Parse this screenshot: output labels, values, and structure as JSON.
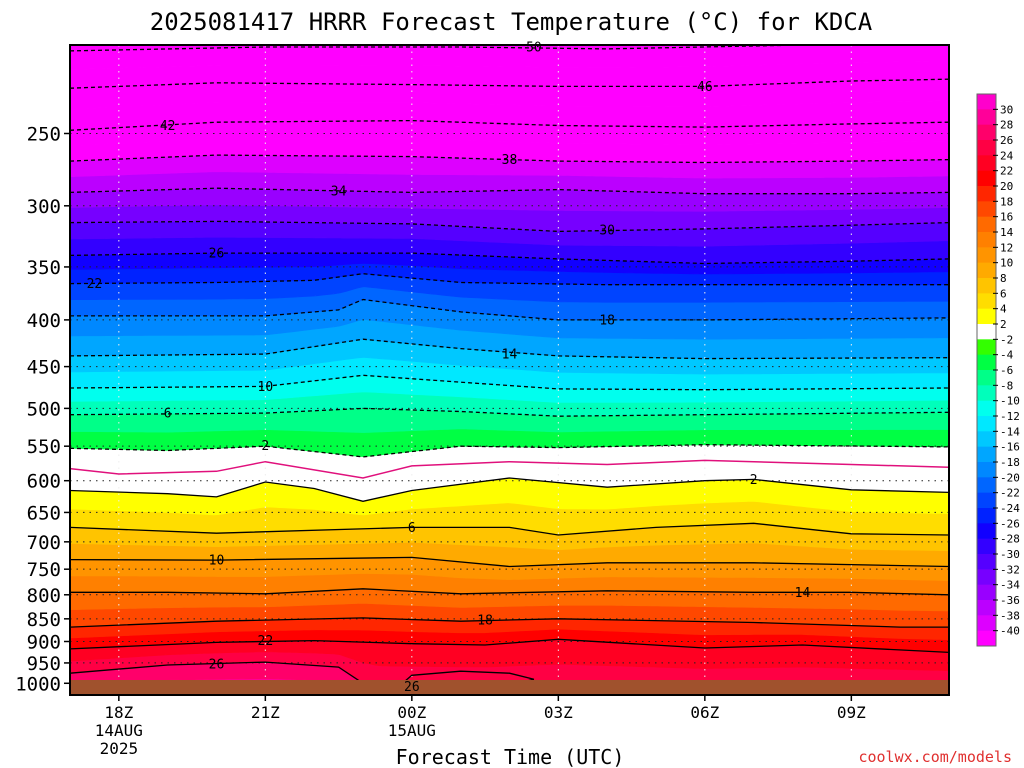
{
  "chart_data": {
    "type": "heatmap",
    "title": "2025081417 HRRR Forecast Temperature (°C) for KDCA",
    "xlabel": "Forecast Time (UTC)",
    "ylabel": "",
    "credit": "coolwx.com/models",
    "y_axis": {
      "scale": "log",
      "inverted": true,
      "range": [
        1030,
        200
      ],
      "ticks": [
        250,
        300,
        350,
        400,
        450,
        500,
        550,
        600,
        650,
        700,
        750,
        800,
        850,
        900,
        950,
        1000
      ],
      "tick_labels": [
        "250",
        "300",
        "350",
        "400",
        "450",
        "500",
        "550",
        "600",
        "650",
        "700",
        "750",
        "800",
        "850",
        "900",
        "950",
        "1000"
      ]
    },
    "x_axis": {
      "range": [
        "2025-08-14T17:00Z",
        "2025-08-15T11:00Z"
      ],
      "ticks": [
        "2025-08-14T18:00Z",
        "2025-08-14T21:00Z",
        "2025-08-15T00:00Z",
        "2025-08-15T03:00Z",
        "2025-08-15T06:00Z",
        "2025-08-15T09:00Z"
      ],
      "tick_labels": [
        [
          "18Z",
          "14AUG",
          "2025"
        ],
        [
          "21Z",
          "",
          ""
        ],
        [
          "00Z",
          "15AUG",
          ""
        ],
        [
          "03Z",
          "",
          ""
        ],
        [
          "06Z",
          "",
          ""
        ],
        [
          "09Z",
          "",
          ""
        ]
      ]
    },
    "grid": true,
    "ground_color": "#a0522d",
    "contours": [
      {
        "value": -50,
        "label": "50",
        "style": "dashed",
        "points": [
          [
            "2025-08-14T17:00Z",
            203
          ],
          [
            "2025-08-14T21:00Z",
            201
          ],
          [
            "2025-08-15T01:00Z",
            201
          ],
          [
            "2025-08-15T04:00Z",
            202
          ],
          [
            "2025-08-15T08:00Z",
            200
          ],
          [
            "2025-08-15T11:00Z",
            199
          ]
        ],
        "label_at": [
          "2025-08-15T02:30Z",
          201
        ]
      },
      {
        "value": -46,
        "label": "46",
        "style": "dashed",
        "points": [
          [
            "2025-08-14T17:00Z",
            223
          ],
          [
            "2025-08-14T20:00Z",
            220
          ],
          [
            "2025-08-15T00:00Z",
            221
          ],
          [
            "2025-08-15T03:00Z",
            222
          ],
          [
            "2025-08-15T06:00Z",
            222
          ],
          [
            "2025-08-15T09:00Z",
            219
          ],
          [
            "2025-08-15T11:00Z",
            218
          ]
        ],
        "label_at": [
          "2025-08-15T06:00Z",
          222
        ]
      },
      {
        "value": -42,
        "label": "42",
        "style": "dashed",
        "points": [
          [
            "2025-08-14T17:00Z",
            248
          ],
          [
            "2025-08-14T20:00Z",
            243
          ],
          [
            "2025-08-15T00:00Z",
            242
          ],
          [
            "2025-08-15T03:00Z",
            245
          ],
          [
            "2025-08-15T06:00Z",
            246
          ],
          [
            "2025-08-15T09:00Z",
            244
          ],
          [
            "2025-08-15T11:00Z",
            243
          ]
        ],
        "label_at": [
          "2025-08-14T19:00Z",
          245
        ]
      },
      {
        "value": -38,
        "label": "38",
        "style": "dashed",
        "points": [
          [
            "2025-08-14T17:00Z",
            268
          ],
          [
            "2025-08-14T20:00Z",
            264
          ],
          [
            "2025-08-15T00:00Z",
            265
          ],
          [
            "2025-08-15T03:00Z",
            268
          ],
          [
            "2025-08-15T06:00Z",
            269
          ],
          [
            "2025-08-15T09:00Z",
            268
          ],
          [
            "2025-08-15T11:00Z",
            267
          ]
        ],
        "label_at": [
          "2025-08-15T02:00Z",
          267
        ]
      },
      {
        "value": -34,
        "label": "34",
        "style": "dashed",
        "points": [
          [
            "2025-08-14T17:00Z",
            290
          ],
          [
            "2025-08-14T20:00Z",
            287
          ],
          [
            "2025-08-15T00:00Z",
            290
          ],
          [
            "2025-08-15T03:00Z",
            288
          ],
          [
            "2025-08-15T06:00Z",
            291
          ],
          [
            "2025-08-15T09:00Z",
            291
          ],
          [
            "2025-08-15T11:00Z",
            290
          ]
        ],
        "label_at": [
          "2025-08-14T22:30Z",
          289
        ]
      },
      {
        "value": -30,
        "label": "30",
        "style": "dashed",
        "points": [
          [
            "2025-08-14T17:00Z",
            313
          ],
          [
            "2025-08-14T20:00Z",
            312
          ],
          [
            "2025-08-15T00:00Z",
            314
          ],
          [
            "2025-08-15T03:00Z",
            320
          ],
          [
            "2025-08-15T06:00Z",
            318
          ],
          [
            "2025-08-15T09:00Z",
            315
          ],
          [
            "2025-08-15T11:00Z",
            313
          ]
        ],
        "label_at": [
          "2025-08-15T04:00Z",
          319
        ]
      },
      {
        "value": -26,
        "label": "26",
        "style": "dashed",
        "points": [
          [
            "2025-08-14T17:00Z",
            340
          ],
          [
            "2025-08-14T20:00Z",
            338
          ],
          [
            "2025-08-15T00:00Z",
            338
          ],
          [
            "2025-08-15T03:00Z",
            343
          ],
          [
            "2025-08-15T06:00Z",
            347
          ],
          [
            "2025-08-15T09:00Z",
            345
          ],
          [
            "2025-08-15T11:00Z",
            343
          ]
        ],
        "label_at": [
          "2025-08-14T20:00Z",
          338
        ]
      },
      {
        "value": -22,
        "label": "22",
        "style": "dashed",
        "points": [
          [
            "2025-08-14T17:00Z",
            365
          ],
          [
            "2025-08-14T20:00Z",
            364
          ],
          [
            "2025-08-14T22:00Z",
            362
          ],
          [
            "2025-08-14T23:00Z",
            356
          ],
          [
            "2025-08-15T01:00Z",
            364
          ],
          [
            "2025-08-15T04:00Z",
            366
          ],
          [
            "2025-08-15T08:00Z",
            366
          ],
          [
            "2025-08-15T11:00Z",
            366
          ]
        ],
        "label_at": [
          "2025-08-14T17:30Z",
          365
        ]
      },
      {
        "value": -18,
        "label": "18",
        "style": "dashed",
        "points": [
          [
            "2025-08-14T17:00Z",
            396
          ],
          [
            "2025-08-14T21:00Z",
            396
          ],
          [
            "2025-08-14T22:30Z",
            390
          ],
          [
            "2025-08-14T23:00Z",
            380
          ],
          [
            "2025-08-15T01:00Z",
            392
          ],
          [
            "2025-08-15T03:00Z",
            400
          ],
          [
            "2025-08-15T06:00Z",
            400
          ],
          [
            "2025-08-15T11:00Z",
            398
          ]
        ],
        "label_at": [
          "2025-08-15T04:00Z",
          400
        ]
      },
      {
        "value": -14,
        "label": "14",
        "style": "dashed",
        "points": [
          [
            "2025-08-14T17:00Z",
            438
          ],
          [
            "2025-08-14T21:00Z",
            436
          ],
          [
            "2025-08-14T23:00Z",
            420
          ],
          [
            "2025-08-15T01:00Z",
            430
          ],
          [
            "2025-08-15T03:00Z",
            438
          ],
          [
            "2025-08-15T06:00Z",
            441
          ],
          [
            "2025-08-15T11:00Z",
            440
          ]
        ],
        "label_at": [
          "2025-08-15T02:00Z",
          436
        ]
      },
      {
        "value": -10,
        "label": "10",
        "style": "dashed",
        "points": [
          [
            "2025-08-14T17:00Z",
            475
          ],
          [
            "2025-08-14T21:00Z",
            473
          ],
          [
            "2025-08-14T23:00Z",
            460
          ],
          [
            "2025-08-15T01:00Z",
            468
          ],
          [
            "2025-08-15T03:00Z",
            476
          ],
          [
            "2025-08-15T06:00Z",
            477
          ],
          [
            "2025-08-15T11:00Z",
            475
          ]
        ],
        "label_at": [
          "2025-08-14T21:00Z",
          473
        ]
      },
      {
        "value": -6,
        "label": "6",
        "style": "dashed",
        "points": [
          [
            "2025-08-14T17:00Z",
            508
          ],
          [
            "2025-08-14T21:00Z",
            506
          ],
          [
            "2025-08-14T23:00Z",
            500
          ],
          [
            "2025-08-15T01:00Z",
            504
          ],
          [
            "2025-08-15T03:00Z",
            510
          ],
          [
            "2025-08-15T06:00Z",
            508
          ],
          [
            "2025-08-15T11:00Z",
            505
          ]
        ],
        "label_at": [
          "2025-08-14T19:00Z",
          506
        ]
      },
      {
        "value": -2,
        "label": "2",
        "style": "dashed",
        "points": [
          [
            "2025-08-14T17:00Z",
            553
          ],
          [
            "2025-08-14T19:00Z",
            556
          ],
          [
            "2025-08-14T21:00Z",
            550
          ],
          [
            "2025-08-14T23:00Z",
            565
          ],
          [
            "2025-08-15T01:00Z",
            550
          ],
          [
            "2025-08-15T03:00Z",
            552
          ],
          [
            "2025-08-15T06:00Z",
            548
          ],
          [
            "2025-08-15T11:00Z",
            551
          ]
        ],
        "label_at": [
          "2025-08-14T21:00Z",
          549
        ]
      },
      {
        "value": 0,
        "label": "",
        "style": "pink",
        "points": [
          [
            "2025-08-14T17:00Z",
            582
          ],
          [
            "2025-08-14T18:00Z",
            590
          ],
          [
            "2025-08-14T20:00Z",
            586
          ],
          [
            "2025-08-14T21:00Z",
            572
          ],
          [
            "2025-08-14T23:00Z",
            596
          ],
          [
            "2025-08-15T00:00Z",
            578
          ],
          [
            "2025-08-15T02:00Z",
            572
          ],
          [
            "2025-08-15T04:00Z",
            576
          ],
          [
            "2025-08-15T06:00Z",
            570
          ],
          [
            "2025-08-15T09:00Z",
            576
          ],
          [
            "2025-08-15T11:00Z",
            580
          ]
        ],
        "label_at": null
      },
      {
        "value": 2,
        "label": "2",
        "style": "solid",
        "points": [
          [
            "2025-08-14T17:00Z",
            615
          ],
          [
            "2025-08-14T19:00Z",
            620
          ],
          [
            "2025-08-14T20:00Z",
            625
          ],
          [
            "2025-08-14T21:00Z",
            602
          ],
          [
            "2025-08-14T22:00Z",
            612
          ],
          [
            "2025-08-14T23:00Z",
            632
          ],
          [
            "2025-08-15T00:00Z",
            615
          ],
          [
            "2025-08-15T02:00Z",
            596
          ],
          [
            "2025-08-15T04:00Z",
            610
          ],
          [
            "2025-08-15T06:00Z",
            600
          ],
          [
            "2025-08-15T07:00Z",
            598
          ],
          [
            "2025-08-15T09:00Z",
            614
          ],
          [
            "2025-08-15T11:00Z",
            618
          ]
        ],
        "label_at": [
          "2025-08-15T07:00Z",
          598
        ]
      },
      {
        "value": 6,
        "label": "6",
        "style": "solid",
        "points": [
          [
            "2025-08-14T17:00Z",
            675
          ],
          [
            "2025-08-14T20:00Z",
            685
          ],
          [
            "2025-08-15T00:00Z",
            675
          ],
          [
            "2025-08-15T02:00Z",
            675
          ],
          [
            "2025-08-15T03:00Z",
            688
          ],
          [
            "2025-08-15T05:00Z",
            675
          ],
          [
            "2025-08-15T07:00Z",
            668
          ],
          [
            "2025-08-15T09:00Z",
            686
          ],
          [
            "2025-08-15T11:00Z",
            688
          ]
        ],
        "label_at": [
          "2025-08-15T00:00Z",
          675
        ]
      },
      {
        "value": 10,
        "label": "10",
        "style": "solid",
        "points": [
          [
            "2025-08-14T17:00Z",
            732
          ],
          [
            "2025-08-14T20:00Z",
            733
          ],
          [
            "2025-08-15T00:00Z",
            728
          ],
          [
            "2025-08-15T02:00Z",
            745
          ],
          [
            "2025-08-15T04:00Z",
            738
          ],
          [
            "2025-08-15T07:00Z",
            738
          ],
          [
            "2025-08-15T11:00Z",
            745
          ]
        ],
        "label_at": [
          "2025-08-14T20:00Z",
          733
        ]
      },
      {
        "value": 14,
        "label": "14",
        "style": "solid",
        "points": [
          [
            "2025-08-14T17:00Z",
            795
          ],
          [
            "2025-08-14T19:00Z",
            795
          ],
          [
            "2025-08-14T21:00Z",
            798
          ],
          [
            "2025-08-14T23:00Z",
            788
          ],
          [
            "2025-08-15T01:00Z",
            798
          ],
          [
            "2025-08-15T04:00Z",
            792
          ],
          [
            "2025-08-15T07:00Z",
            795
          ],
          [
            "2025-08-15T09:00Z",
            795
          ],
          [
            "2025-08-15T11:00Z",
            800
          ]
        ],
        "label_at": [
          "2025-08-15T08:00Z",
          795
        ]
      },
      {
        "value": 18,
        "label": "18",
        "style": "solid",
        "points": [
          [
            "2025-08-14T17:00Z",
            868
          ],
          [
            "2025-08-14T20:00Z",
            855
          ],
          [
            "2025-08-14T23:00Z",
            848
          ],
          [
            "2025-08-15T01:00Z",
            855
          ],
          [
            "2025-08-15T03:00Z",
            850
          ],
          [
            "2025-08-15T07:00Z",
            858
          ],
          [
            "2025-08-15T10:00Z",
            868
          ],
          [
            "2025-08-15T11:00Z",
            868
          ]
        ],
        "label_at": [
          "2025-08-15T01:30Z",
          852
        ]
      },
      {
        "value": 22,
        "label": "22",
        "style": "solid",
        "points": [
          [
            "2025-08-14T17:00Z",
            917
          ],
          [
            "2025-08-14T20:00Z",
            902
          ],
          [
            "2025-08-14T22:00Z",
            898
          ],
          [
            "2025-08-15T00:00Z",
            905
          ],
          [
            "2025-08-15T01:30Z",
            908
          ],
          [
            "2025-08-15T03:00Z",
            895
          ],
          [
            "2025-08-15T06:00Z",
            915
          ],
          [
            "2025-08-15T08:00Z",
            908
          ],
          [
            "2025-08-15T11:00Z",
            925
          ]
        ],
        "label_at": [
          "2025-08-14T21:00Z",
          898
        ]
      },
      {
        "value": 26,
        "label": "26",
        "style": "solid",
        "points": [
          [
            "2025-08-14T17:00Z",
            975
          ],
          [
            "2025-08-14T19:00Z",
            955
          ],
          [
            "2025-08-14T21:00Z",
            948
          ],
          [
            "2025-08-14T22:30Z",
            960
          ],
          [
            "2025-08-14T23:00Z",
            1000
          ],
          [
            "2025-08-14T23:20Z",
            1015
          ]
        ],
        "label_at": [
          "2025-08-14T20:00Z",
          952
        ]
      },
      {
        "value": 26,
        "label": "26",
        "style": "solid",
        "points": [
          [
            "2025-08-14T23:40Z",
            1015
          ],
          [
            "2025-08-15T00:00Z",
            980
          ],
          [
            "2025-08-15T01:00Z",
            970
          ],
          [
            "2025-08-15T02:00Z",
            975
          ],
          [
            "2025-08-15T02:30Z",
            990
          ],
          [
            "2025-08-15T02:00Z",
            1005
          ],
          [
            "2025-08-15T00:30Z",
            1008
          ],
          [
            "2025-08-14T23:40Z",
            1005
          ]
        ],
        "label_at": [
          "2025-08-15T00:00Z",
          1008
        ]
      }
    ],
    "colorbar": {
      "labels": [
        "30",
        "28",
        "26",
        "24",
        "22",
        "20",
        "18",
        "16",
        "14",
        "12",
        "10",
        "8",
        "6",
        "4",
        "2",
        "-2",
        "-4",
        "-6",
        "-8",
        "-10",
        "-12",
        "-14",
        "-16",
        "-18",
        "-20",
        "-22",
        "-24",
        "-26",
        "-28",
        "-30",
        "-32",
        "-34",
        "-36",
        "-38",
        "-40"
      ],
      "colors": [
        "#ff00cc",
        "#ff0099",
        "#ff006a",
        "#ff0044",
        "#ff0022",
        "#ff0000",
        "#ff2600",
        "#ff4800",
        "#ff6a00",
        "#ff8000",
        "#ff9400",
        "#ffaa00",
        "#ffc400",
        "#ffdd00",
        "#ffff00",
        "#ffffff",
        "#33ff00",
        "#00ff44",
        "#00ff88",
        "#00ffbb",
        "#00ffee",
        "#00e8ff",
        "#00c8ff",
        "#00a6ff",
        "#0088ff",
        "#0066ff",
        "#0044ff",
        "#0022ff",
        "#1100ff",
        "#3300ff",
        "#5500ff",
        "#7700ff",
        "#9900ff",
        "#bb00ff",
        "#dd00ff",
        "#ff00ff"
      ]
    }
  }
}
